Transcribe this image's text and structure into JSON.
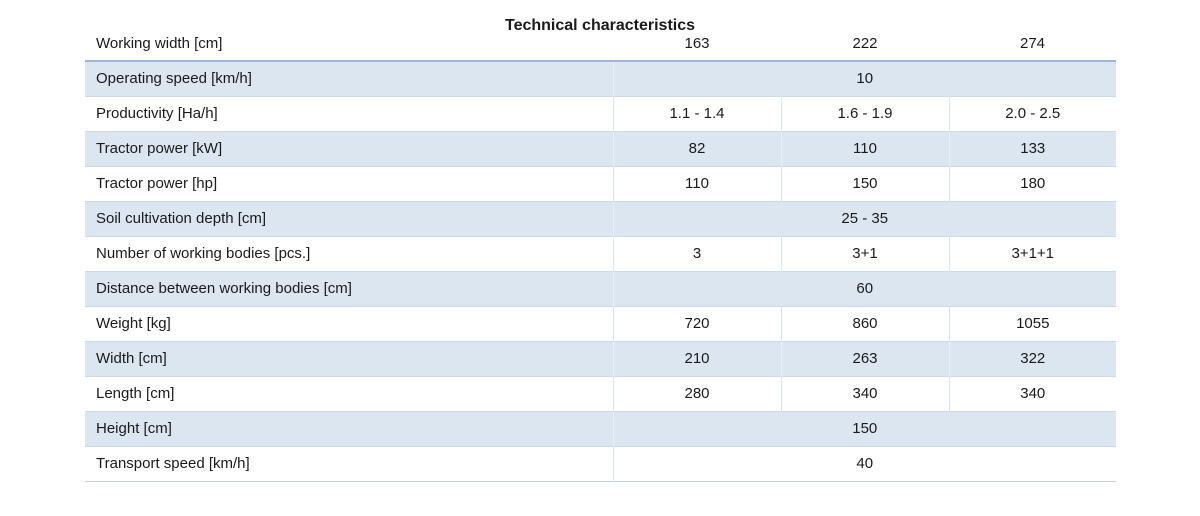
{
  "title": "Technical characteristics",
  "colors": {
    "row_alt_bg": "#dce6f1",
    "header_divider": "#9db7d6",
    "grid_line": "#ccd9e8",
    "column_line": "#dbe3ee",
    "table_bottom_line": "#c6cdd6",
    "text": "#1a1a1a"
  },
  "table": {
    "header_row": {
      "label": "Working width [cm]",
      "values": [
        "163",
        "222",
        "274"
      ]
    },
    "rows": [
      {
        "label": "Operating speed [km/h]",
        "merged": true,
        "values": [
          "10"
        ]
      },
      {
        "label": "Productivity [Ha/h]",
        "merged": false,
        "values": [
          "1.1 - 1.4",
          "1.6 - 1.9",
          "2.0 - 2.5"
        ]
      },
      {
        "label": "Tractor power [kW]",
        "merged": false,
        "values": [
          "82",
          "110",
          "133"
        ]
      },
      {
        "label": "Tractor power [hp]",
        "merged": false,
        "values": [
          "110",
          "150",
          "180"
        ]
      },
      {
        "label": "Soil cultivation depth [cm]",
        "merged": true,
        "values": [
          "25 - 35"
        ]
      },
      {
        "label": "Number of working bodies [pcs.]",
        "merged": false,
        "values": [
          "3",
          "3+1",
          "3+1+1"
        ]
      },
      {
        "label": "Distance between working bodies [cm]",
        "merged": true,
        "values": [
          "60"
        ]
      },
      {
        "label": "Weight [kg]",
        "merged": false,
        "values": [
          "720",
          "860",
          "1055"
        ]
      },
      {
        "label": "Width [cm]",
        "merged": false,
        "values": [
          "210",
          "263",
          "322"
        ]
      },
      {
        "label": "Length [cm]",
        "merged": false,
        "values": [
          "280",
          "340",
          "340"
        ]
      },
      {
        "label": "Height [cm]",
        "merged": true,
        "values": [
          "150"
        ]
      },
      {
        "label": "Transport speed [km/h]",
        "merged": true,
        "values": [
          "40"
        ]
      }
    ]
  }
}
